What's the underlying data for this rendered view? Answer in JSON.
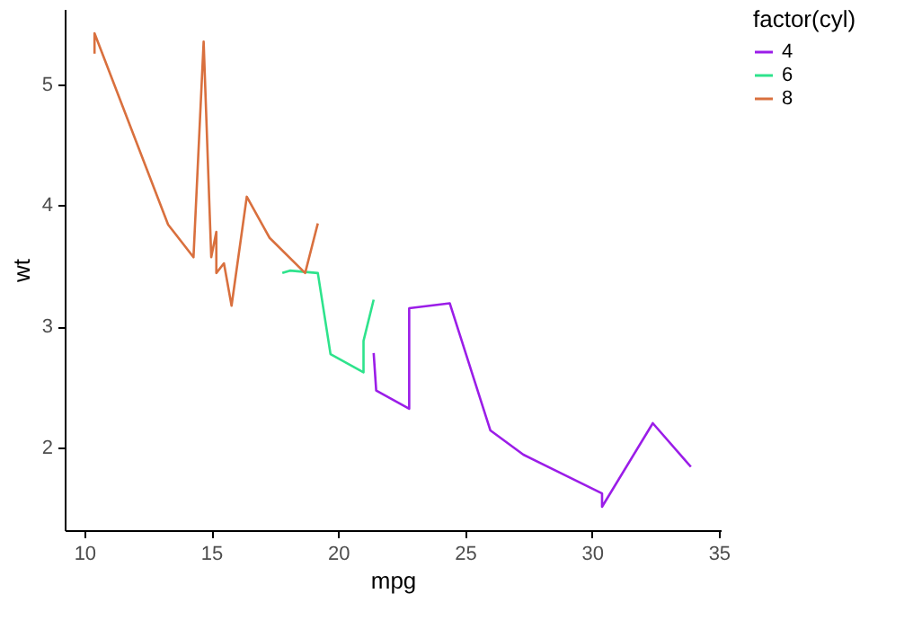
{
  "chart_data": {
    "type": "line",
    "xlabel": "mpg",
    "ylabel": "wt",
    "legend_title": "factor(cyl)",
    "legend": "right",
    "xlim": [
      9.225,
      35.075
    ],
    "xticks": [
      10,
      15,
      20,
      25,
      30,
      35
    ],
    "ylim": [
      1.317,
      5.62
    ],
    "yticks": [
      2,
      3,
      4,
      5
    ],
    "grid": false,
    "series": [
      {
        "name": "4",
        "color": "#9b1de8",
        "x": [
          21.4,
          21.5,
          22.8,
          22.8,
          24.4,
          26.0,
          27.3,
          30.4,
          30.4,
          32.4,
          33.9
        ],
        "values": [
          2.78,
          2.47,
          2.32,
          3.15,
          3.19,
          2.14,
          1.94,
          1.62,
          1.51,
          2.2,
          1.84
        ]
      },
      {
        "name": "6",
        "color": "#2ee38c",
        "x": [
          17.8,
          18.1,
          19.2,
          19.7,
          21.0,
          21.0,
          21.4
        ],
        "values": [
          3.44,
          3.46,
          3.44,
          2.77,
          2.62,
          2.88,
          3.22
        ]
      },
      {
        "name": "8",
        "color": "#d9703e",
        "x": [
          10.4,
          10.4,
          13.3,
          14.3,
          14.7,
          15.0,
          15.2,
          15.2,
          15.5,
          15.8,
          16.4,
          17.3,
          18.7,
          19.2
        ],
        "values": [
          5.25,
          5.42,
          3.84,
          3.57,
          5.35,
          3.57,
          3.78,
          3.44,
          3.52,
          3.17,
          4.07,
          3.73,
          3.44,
          3.85
        ]
      }
    ]
  }
}
